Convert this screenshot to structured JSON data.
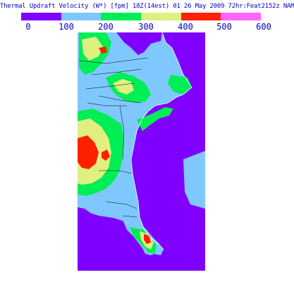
{
  "header": {
    "title": "Thermal Updraft Velocity (W*) [fpm] 18Z(14est) 01 26 May 2009 72hr:Feat2152z NAM"
  },
  "legend": {
    "colors": [
      "#7f00ff",
      "#7fc8ff",
      "#00ee55",
      "#e0f080",
      "#ff2000",
      "#ff66ff"
    ],
    "tick_labels": [
      "0",
      "100",
      "200",
      "300",
      "400",
      "500",
      "600"
    ]
  },
  "map": {
    "ocean_color": "#7f00ff",
    "land_base_color": "#7fc8ff",
    "border_color": "#000000"
  }
}
